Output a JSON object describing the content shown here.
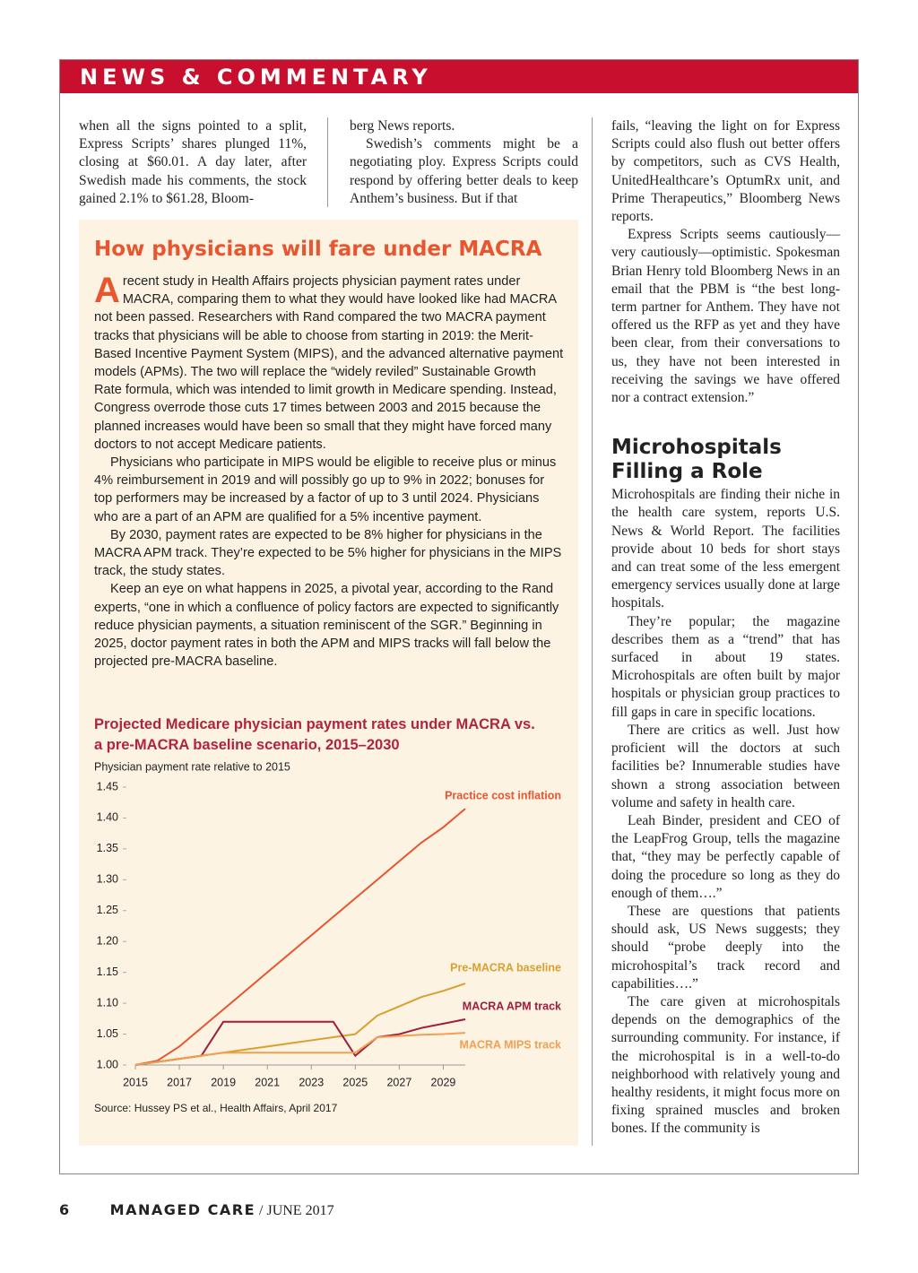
{
  "header": {
    "section": "NEWS & COMMENTARY"
  },
  "columns": {
    "left": [
      "when all the signs pointed to a split, Express Scripts’ shares plunged 11%, closing at $60.01. A day later, after Swedish made his comments, the stock gained 2.1% to $61.28, Bloom-"
    ],
    "middle": [
      "berg News reports.",
      "Swedish’s comments might be a negotiating ploy. Express Scripts could respond by offering better deals to keep Anthem’s business. But if that"
    ],
    "right_top": [
      "fails, “leaving the light on for Express Scripts could also flush out better offers by competitors, such as CVS Health, UnitedHealthcare’s OptumRx unit, and Prime Therapeutics,” Bloomberg News reports.",
      "Express Scripts seems cautiously—very cautiously—optimistic. Spokesman Brian Henry told Bloomberg News in an email that the PBM is “the best long-term partner for Anthem. They have not offered us the RFP as yet and they have been clear, from their conversations to us, they have not been interested in receiving the savings we have offered nor a contract extension.”"
    ],
    "right_heading": "Microhospitals Filling a Role",
    "right_body": [
      "Microhospitals are finding their niche in the health care system, reports U.S. News & World Report. The facilities provide about 10 beds for short stays and can treat some of the less emergent emergency services usually done at large hospitals.",
      "They’re popular; the magazine describes them as a “trend” that has surfaced in about 19 states. Microhospitals are often built by major hospitals or physician group practices to fill gaps in care in specific locations.",
      "There are critics as well. Just how proficient will the doctors at such facilities be? Innumerable studies have shown a strong association between volume and safety in health care.",
      "Leah Binder, president and CEO of the LeapFrog Group, tells the magazine that, “they may be perfectly capable of doing the procedure so long as they do enough of them….”",
      "These are questions that patients should ask, US News suggests; they should “probe deeply into the microhospital’s track record and capabilities….”",
      "The care given at microhospitals depends on the demographics of the surrounding community. For instance, if the microhospital is in a well-to-do neighborhood with relatively young and healthy residents, it might focus more on fixing sprained muscles and broken bones. If the community is"
    ]
  },
  "sidebar": {
    "title": "How physicians will fare under MACRA",
    "drop_cap": "A",
    "paragraphs": [
      "recent study in Health Affairs projects physician payment rates under MACRA, comparing them to what they would have looked like had MACRA not been passed. Researchers with Rand compared the two MACRA payment tracks that physicians will be able to choose from starting in 2019: the Merit-Based Incentive Payment System (MIPS), and the advanced alternative payment models (APMs). The two will replace the “widely reviled” Sustainable Growth Rate formula, which was intended to limit growth in Medicare spending. Instead, Congress overrode those cuts 17 times between 2003 and 2015 because the planned increases would have been so small that they might have forced many doctors to not accept Medicare patients.",
      "Physicians who participate in MIPS would be eligible to receive plus or minus 4% reimbursement in 2019 and will possibly go up to 9% in 2022; bonuses for top performers may be increased by a factor of up to 3 until 2024. Physicians who are a part of an APM are qualified for a 5% incentive payment.",
      "By 2030, payment rates are expected to be 8% higher for physicians in the MACRA APM track. They’re expected to be 5% higher for physicians in the MIPS track, the study states.",
      "Keep an eye on what happens in 2025, a pivotal year, according to the Rand experts, “one in which a confluence of policy factors are expected to significantly reduce physician payments, a situation reminiscent of the SGR.” Beginning in 2025, doctor payment rates in both the APM and MIPS tracks will fall below the projected pre-MACRA baseline."
    ]
  },
  "chart_data": {
    "type": "line",
    "title": "Projected Medicare physician payment rates under MACRA vs. a pre-MACRA baseline scenario, 2015–2030",
    "y_label": "Physician payment rate relative to 2015",
    "source": "Source: Hussey PS et al., Health Affairs, April 2017",
    "x": [
      2015,
      2016,
      2017,
      2018,
      2019,
      2020,
      2021,
      2022,
      2023,
      2024,
      2025,
      2026,
      2027,
      2028,
      2029,
      2030
    ],
    "xlim": [
      2015,
      2030
    ],
    "xticks": [
      2015,
      2017,
      2019,
      2021,
      2023,
      2025,
      2027,
      2029
    ],
    "ylim": [
      1,
      1.45
    ],
    "yticks": [
      {
        "value": 1,
        "label": "1.00"
      },
      1.05,
      {
        "value": 1.1,
        "label": "1.10"
      },
      1.15,
      {
        "value": 1.2,
        "label": "1.20"
      },
      1.25,
      {
        "value": 1.3,
        "label": "1.30"
      },
      1.35,
      {
        "value": 1.4,
        "label": "1.40"
      },
      1.45
    ],
    "series": [
      {
        "name": "Practice cost inflation",
        "color": "#e8552f",
        "values": [
          1,
          1.007,
          1.03,
          1.06,
          1.09,
          1.12,
          1.15,
          1.18,
          1.21,
          1.24,
          1.27,
          1.3,
          1.33,
          1.36,
          1.385,
          1.415
        ]
      },
      {
        "name": "Pre-MACRA baseline",
        "color": "#d9a030",
        "values": [
          1,
          1.005,
          1.01,
          1.015,
          1.02,
          1.025,
          1.03,
          1.035,
          1.04,
          1.045,
          1.05,
          1.08,
          1.095,
          1.11,
          1.12,
          1.132
        ]
      },
      {
        "name": "MACRA APM track",
        "color": "#a01c3c",
        "values": [
          1,
          1.005,
          1.01,
          1.015,
          1.07,
          1.07,
          1.07,
          1.07,
          1.07,
          1.07,
          1.015,
          1.045,
          1.05,
          1.06,
          1.067,
          1.074
        ]
      },
      {
        "name": "MACRA MIPS track",
        "color": "#f0a050",
        "values": [
          1,
          1.005,
          1.01,
          1.015,
          1.02,
          1.02,
          1.02,
          1.02,
          1.02,
          1.02,
          1.02,
          1.045,
          1.047,
          1.049,
          1.05,
          1.052
        ]
      }
    ]
  },
  "footer": {
    "page": "6",
    "publication": "MANAGED CARE",
    "issue": "/ JUNE 2017"
  }
}
